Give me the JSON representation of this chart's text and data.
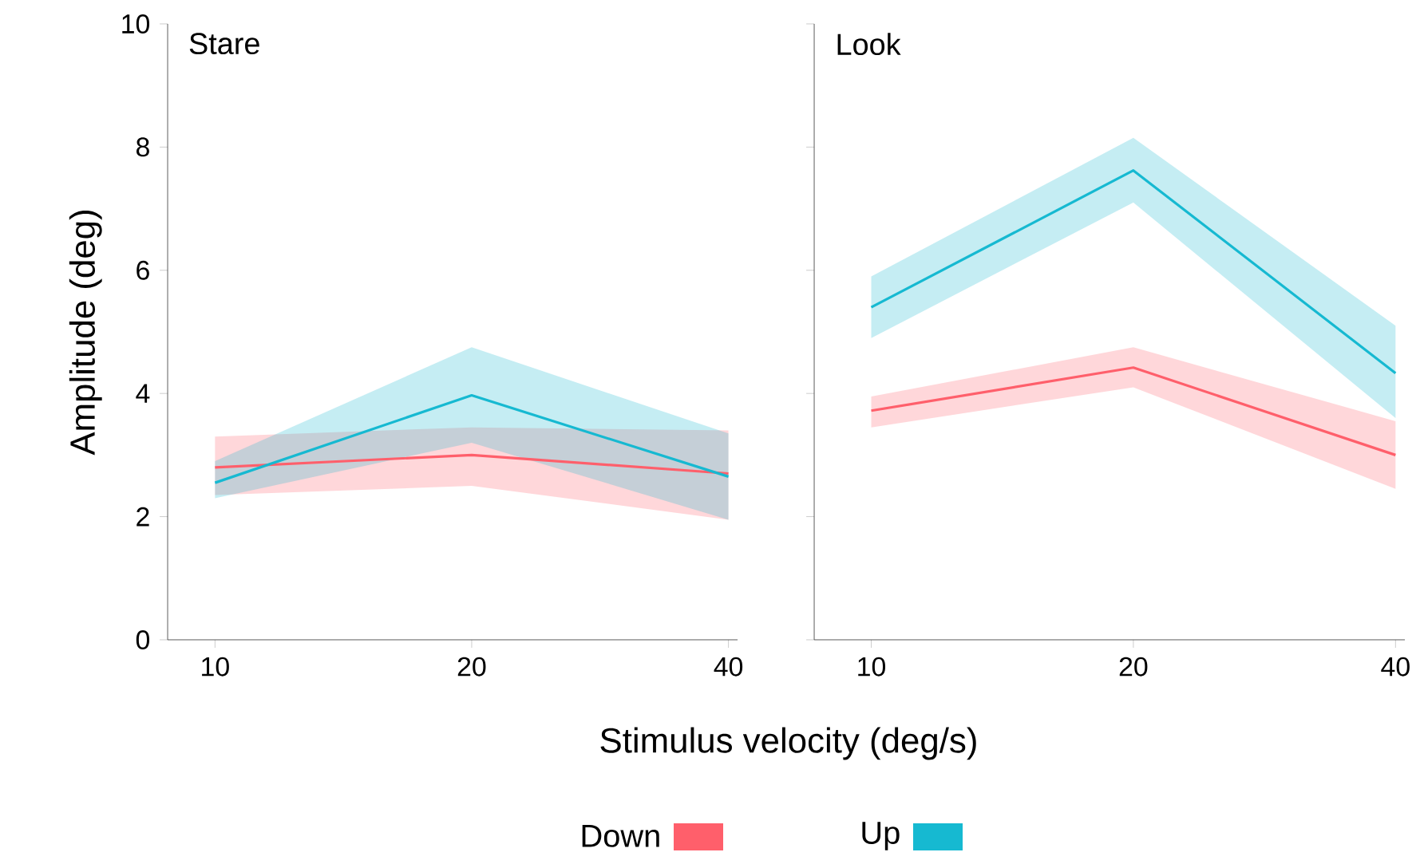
{
  "chart_data": [
    {
      "type": "line",
      "title": "Stare",
      "xlabel": "Stimulus velocity (deg/s)",
      "ylabel": "Amplitude (deg)",
      "log": "x",
      "x": [
        10,
        20,
        40
      ],
      "xlim": [
        8.8,
        41
      ],
      "xticks": [
        10,
        20,
        40
      ],
      "ylim": [
        0,
        10
      ],
      "yticks": [
        0,
        2,
        4,
        6,
        8,
        10
      ],
      "legend": "bottom",
      "series": [
        {
          "name": "Down",
          "color": "#ff5f6b",
          "values": [
            2.8,
            3.0,
            2.7
          ],
          "lower": [
            2.35,
            2.5,
            1.95
          ],
          "upper": [
            3.3,
            3.45,
            3.4
          ]
        },
        {
          "name": "Up",
          "color": "#16b9d1",
          "values": [
            2.55,
            3.97,
            2.65
          ],
          "lower": [
            2.3,
            3.2,
            1.95
          ],
          "upper": [
            2.9,
            4.75,
            3.35
          ]
        }
      ]
    },
    {
      "type": "line",
      "title": "Look",
      "log": "x",
      "x": [
        10,
        20,
        40
      ],
      "xlim": [
        8.6,
        41
      ],
      "xticks": [
        10,
        20,
        40
      ],
      "ylim": [
        0,
        10
      ],
      "yticks": [
        0,
        2,
        4,
        6,
        8,
        10
      ],
      "tick_labels": "x",
      "series": [
        {
          "color": "#ff5f6b",
          "values": [
            3.72,
            4.42,
            3.0
          ],
          "lower": [
            3.45,
            4.1,
            2.45
          ],
          "upper": [
            3.95,
            4.75,
            3.55
          ]
        },
        {
          "color": "#16b9d1",
          "values": [
            5.4,
            7.62,
            4.33
          ],
          "lower": [
            4.9,
            7.1,
            3.6
          ],
          "upper": [
            5.9,
            8.15,
            5.1
          ]
        }
      ]
    }
  ]
}
